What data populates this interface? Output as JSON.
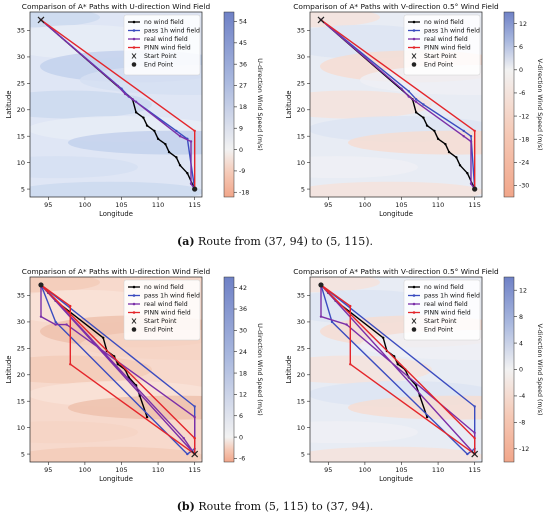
{
  "captions": [
    {
      "label": "(a)",
      "text": "Route from (37, 94) to (5, 115)."
    },
    {
      "label": "(b)",
      "text": "Route from (5, 115) to (37, 94)."
    }
  ],
  "colors": {
    "no_wind": "#000000",
    "pass_1h": "#3b4cc0",
    "real": "#7b2fa8",
    "pinn": "#e4262b",
    "marker": "#222222"
  },
  "chart_data": [
    {
      "type": "line",
      "title": "Comparison of A* Paths with U-direction Wind Field",
      "xlabel": "Longitude",
      "ylabel": "Latitude",
      "colorbar_label": "U-direction Wind Speed (m/s)",
      "colorbar_ticks": [
        -18,
        -9,
        0,
        9,
        18,
        27,
        36,
        45,
        54
      ],
      "colorbar_range": [
        -20,
        58
      ],
      "background": "blue-tinted field",
      "xlim": [
        92.5,
        116
      ],
      "ylim": [
        3.5,
        38.5
      ],
      "xticks": [
        95,
        100,
        105,
        110,
        115
      ],
      "yticks": [
        5,
        10,
        15,
        20,
        25,
        30,
        35
      ],
      "legend_position": "top-right",
      "series": [
        {
          "name": "no wind field",
          "color_key": "no_wind",
          "x": [
            94,
            106.5,
            107,
            108,
            108.5,
            109.5,
            110,
            111,
            111.5,
            112.5,
            113,
            114,
            115
          ],
          "y": [
            37,
            22,
            19.5,
            18.5,
            17,
            16,
            14.5,
            13.5,
            12,
            11,
            9.5,
            8,
            5
          ]
        },
        {
          "name": "pass 1h wind field",
          "color_key": "pass_1h",
          "x": [
            94,
            105,
            106,
            107,
            112.5,
            114,
            115
          ],
          "y": [
            37,
            24,
            22.5,
            21.5,
            16,
            14.5,
            5
          ]
        },
        {
          "name": "real wind field",
          "color_key": "real",
          "x": [
            94,
            104.5,
            105.5,
            106.5,
            113,
            114.5,
            114.5,
            115
          ],
          "y": [
            37,
            24.5,
            23,
            22,
            15,
            14,
            6,
            5
          ]
        },
        {
          "name": "PINN wind field",
          "color_key": "pinn",
          "x": [
            94,
            115,
            115
          ],
          "y": [
            37,
            16,
            5
          ]
        }
      ],
      "markers": [
        {
          "name": "Start Point",
          "symbol": "x",
          "x": 94,
          "y": 37
        },
        {
          "name": "End Point",
          "symbol": "o",
          "x": 115,
          "y": 5
        }
      ]
    },
    {
      "type": "line",
      "title": "Comparison of A* Paths with V-direction 0.5° Wind Field",
      "xlabel": "Longitude",
      "ylabel": "Latitude",
      "colorbar_label": "V-direction Wind Speed (m/s)",
      "colorbar_ticks": [
        -30,
        -24,
        -18,
        -12,
        -6,
        0,
        6,
        12
      ],
      "colorbar_range": [
        -33,
        15
      ],
      "background": "mixed field",
      "xlim": [
        92.5,
        116
      ],
      "ylim": [
        3.5,
        38.5
      ],
      "xticks": [
        95,
        100,
        105,
        110,
        115
      ],
      "yticks": [
        5,
        10,
        15,
        20,
        25,
        30,
        35
      ],
      "legend_position": "top-right",
      "series": [
        {
          "name": "no wind field",
          "color_key": "no_wind",
          "x": [
            94,
            106.5,
            107,
            108,
            108.5,
            109.5,
            110,
            111,
            111.5,
            112.5,
            113,
            114,
            115
          ],
          "y": [
            37,
            22,
            19.5,
            18.5,
            17,
            16,
            14.5,
            13.5,
            12,
            11,
            9.5,
            8,
            5
          ]
        },
        {
          "name": "pass 1h wind field",
          "color_key": "pass_1h",
          "x": [
            94,
            106,
            107,
            108,
            113.5,
            114.5,
            115
          ],
          "y": [
            37,
            23.5,
            22,
            21,
            16,
            15,
            5
          ]
        },
        {
          "name": "real wind field",
          "color_key": "real",
          "x": [
            94,
            105,
            106,
            107,
            113.5,
            114.5,
            114.5,
            115
          ],
          "y": [
            37,
            24,
            22.5,
            21.5,
            15,
            14,
            6,
            5
          ]
        },
        {
          "name": "PINN wind field",
          "color_key": "pinn",
          "x": [
            94,
            115,
            115
          ],
          "y": [
            37,
            16,
            5
          ]
        }
      ],
      "markers": [
        {
          "name": "Start Point",
          "symbol": "x",
          "x": 94,
          "y": 37
        },
        {
          "name": "End Point",
          "symbol": "o",
          "x": 115,
          "y": 5
        }
      ]
    },
    {
      "type": "line",
      "title": "Comparison of A* Paths with U-direction Wind Field",
      "xlabel": "Longitude",
      "ylabel": "Latitude",
      "colorbar_label": "U-direction Wind Speed (m/s)",
      "colorbar_ticks": [
        -6,
        0,
        6,
        12,
        18,
        24,
        30,
        36,
        42
      ],
      "colorbar_range": [
        -7,
        45
      ],
      "background": "red-tinted field",
      "xlim": [
        92.5,
        116
      ],
      "ylim": [
        3.5,
        38.5
      ],
      "xticks": [
        95,
        100,
        105,
        110,
        115
      ],
      "yticks": [
        5,
        10,
        15,
        20,
        25,
        30,
        35
      ],
      "legend_position": "top-right",
      "series": [
        {
          "name": "no wind field",
          "color_key": "no_wind",
          "x": [
            94,
            95,
            96,
            102.5,
            103,
            104,
            104.5,
            105.5,
            106,
            107,
            107.5,
            108.5
          ],
          "y": [
            37,
            35.5,
            34,
            27,
            24.5,
            23.5,
            22,
            21,
            19.5,
            18,
            16,
            12
          ]
        },
        {
          "name": "pass 1h wind field",
          "color_key": "pass_1h",
          "x": [
            94,
            115,
            115,
            114,
            96,
            94
          ],
          "y": [
            37,
            14,
            6,
            5,
            30,
            37
          ]
        },
        {
          "name": "real wind field",
          "color_key": "real",
          "x": [
            94,
            94,
            96,
            97.5,
            115,
            115,
            94,
            113.5,
            115
          ],
          "y": [
            37,
            31,
            29.5,
            29.5,
            12,
            5,
            37,
            8,
            5
          ]
        },
        {
          "name": "PINN wind field",
          "color_key": "pinn",
          "x": [
            94,
            98,
            98,
            115,
            115,
            115,
            94,
            94
          ],
          "y": [
            37,
            33,
            22,
            5,
            8,
            8,
            37,
            37
          ]
        }
      ],
      "markers": [
        {
          "name": "Start Point",
          "symbol": "x",
          "x": 115,
          "y": 5
        },
        {
          "name": "End Point",
          "symbol": "o",
          "x": 94,
          "y": 37
        }
      ]
    },
    {
      "type": "line",
      "title": "Comparison of A* Paths with V-direction 0.5° Wind Field",
      "xlabel": "Longitude",
      "ylabel": "Latitude",
      "colorbar_label": "V-direction Wind Speed (m/s)",
      "colorbar_ticks": [
        -12,
        -8,
        -4,
        0,
        4,
        8,
        12
      ],
      "colorbar_range": [
        -14,
        14
      ],
      "background": "mixed field",
      "xlim": [
        92.5,
        116
      ],
      "ylim": [
        3.5,
        38.5
      ],
      "xticks": [
        95,
        100,
        105,
        110,
        115
      ],
      "yticks": [
        5,
        10,
        15,
        20,
        25,
        30,
        35
      ],
      "legend_position": "top-right",
      "series": [
        {
          "name": "no wind field",
          "color_key": "no_wind",
          "x": [
            94,
            95,
            96,
            102.5,
            103,
            104,
            104.5,
            105.5,
            106,
            107,
            107.5,
            108.5
          ],
          "y": [
            37,
            35.5,
            34,
            27,
            24.5,
            23.5,
            22,
            21,
            19.5,
            18,
            16,
            12
          ]
        },
        {
          "name": "pass 1h wind field",
          "color_key": "pass_1h",
          "x": [
            94,
            115,
            115,
            114,
            95.5,
            94
          ],
          "y": [
            37,
            14,
            6,
            5,
            30,
            37
          ]
        },
        {
          "name": "real wind field",
          "color_key": "real",
          "x": [
            94,
            94,
            97.5,
            115,
            115,
            94
          ],
          "y": [
            37,
            31,
            29.5,
            9,
            5,
            37
          ]
        },
        {
          "name": "PINN wind field",
          "color_key": "pinn",
          "x": [
            94,
            98,
            98,
            115,
            115,
            94
          ],
          "y": [
            37,
            33,
            22,
            5,
            8,
            37
          ]
        }
      ],
      "markers": [
        {
          "name": "Start Point",
          "symbol": "x",
          "x": 115,
          "y": 5
        },
        {
          "name": "End Point",
          "symbol": "o",
          "x": 94,
          "y": 37
        }
      ]
    }
  ]
}
